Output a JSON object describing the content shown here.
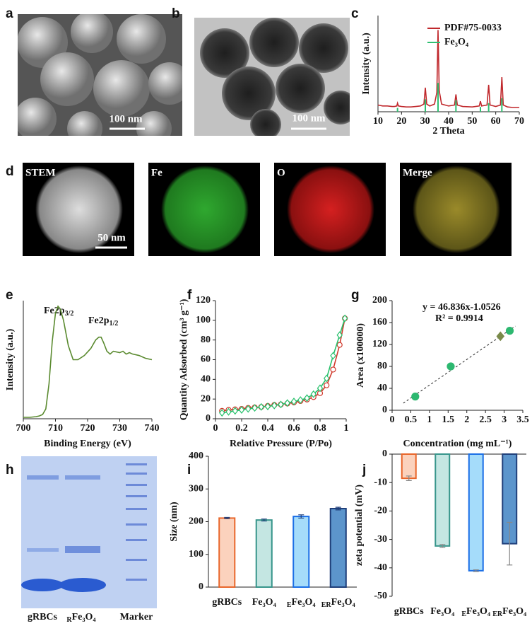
{
  "panel_labels": [
    "a",
    "b",
    "c",
    "d",
    "e",
    "f",
    "g",
    "h",
    "i",
    "j"
  ],
  "images": {
    "a_scale": "100 nm",
    "b_scale": "100 nm",
    "d_titles": [
      "STEM",
      "Fe",
      "O",
      "Merge"
    ],
    "d_scale": "50 nm",
    "h_lanes": [
      "gRBCs",
      {
        "sub": "R",
        "text": "Fe₃O₄"
      },
      "Marker"
    ]
  },
  "chart_data": [
    {
      "type": "line",
      "ylabel": "Intensity (a.u.)",
      "xlabel": "2 Theta",
      "xlim": [
        10,
        70
      ],
      "xticks": [
        10,
        20,
        30,
        40,
        50,
        60,
        70
      ],
      "ylim": [
        0,
        100
      ],
      "legend": "upper right",
      "series": [
        {
          "name": "PDF#75-0033",
          "color": "#c0282c",
          "x": [
            10,
            12,
            14,
            16,
            17,
            18,
            18.3,
            18.7,
            20,
            22,
            24,
            26,
            28,
            29.5,
            30.1,
            30.7,
            32,
            34,
            35,
            35.5,
            36,
            37,
            40,
            42.5,
            43.1,
            43.7,
            46,
            50,
            53,
            53.5,
            54,
            56.3,
            57,
            57.6,
            60,
            62,
            62.6,
            63.2,
            65,
            67,
            70
          ],
          "values": [
            7,
            6,
            6,
            5.5,
            5.5,
            6,
            9,
            6,
            5.5,
            5,
            5,
            5.5,
            6,
            8,
            25,
            8,
            6,
            8,
            20,
            85,
            22,
            8,
            6,
            7,
            18,
            7,
            5.5,
            5,
            6,
            11,
            6,
            7,
            28,
            7,
            5.5,
            7,
            36,
            7,
            5,
            4.5,
            4.5
          ]
        },
        {
          "name": "Fe₃O₄",
          "color": "#2fbf71",
          "marker": "stick",
          "x": [
            18.3,
            30.1,
            35.5,
            43.1,
            53.5,
            57.0,
            62.6
          ],
          "values": [
            4,
            13,
            30,
            12,
            5,
            9,
            14
          ]
        }
      ]
    },
    {
      "type": "line",
      "ylabel": "Intensity (a.u.)",
      "xlabel": "Binding Energy (eV)",
      "xlim": [
        700,
        740
      ],
      "xticks": [
        700,
        710,
        720,
        730,
        740
      ],
      "ylim": [
        0,
        84
      ],
      "annotations": [
        {
          "text": "Fe2p",
          "sub": "3/2"
        },
        {
          "text": "Fe2p",
          "sub": "1/2"
        }
      ],
      "series": [
        {
          "color": "#5a8a2f",
          "x": [
            700,
            702,
            704,
            705,
            706,
            707,
            708,
            709,
            710,
            710.8,
            711.5,
            712.5,
            714,
            715.5,
            717,
            719,
            721,
            722.5,
            723.5,
            724.2,
            725,
            726,
            727,
            728,
            730,
            731,
            732,
            733,
            734,
            736,
            738,
            740
          ],
          "values": [
            1,
            1,
            1.5,
            2,
            3,
            7,
            25,
            55,
            75,
            80,
            78,
            70,
            52,
            42,
            42,
            45,
            50,
            56,
            58,
            58,
            54,
            48,
            46,
            48,
            47,
            48,
            46,
            47,
            46,
            45,
            43,
            42
          ]
        }
      ]
    },
    {
      "type": "line",
      "ylabel": "Quantity Adsorbed (cm³ g⁻¹)",
      "xlabel": "Relative Pressure (P/Po)",
      "xlim": [
        0,
        1
      ],
      "xticks": [
        0,
        0.2,
        0.4,
        0.6,
        0.8,
        1
      ],
      "ylim": [
        0,
        120
      ],
      "yticks": [
        0,
        20,
        40,
        60,
        80,
        100,
        120
      ],
      "x": [
        0.05,
        0.1,
        0.15,
        0.2,
        0.25,
        0.3,
        0.35,
        0.4,
        0.45,
        0.5,
        0.55,
        0.6,
        0.65,
        0.7,
        0.75,
        0.8,
        0.85,
        0.9,
        0.95,
        0.99
      ],
      "series": [
        {
          "color": "#d0392b",
          "marker": "circle",
          "hollow": true,
          "values": [
            8,
            9,
            9.5,
            10,
            11,
            11.5,
            12,
            13,
            14,
            14.5,
            15.5,
            16.5,
            18,
            19.5,
            22,
            26,
            34,
            50,
            75,
            102
          ]
        },
        {
          "color": "#27c06b",
          "marker": "diamond",
          "hollow": true,
          "values": [
            6,
            7,
            8,
            9,
            10,
            11,
            12,
            12.5,
            13.5,
            14.5,
            16,
            17.5,
            19,
            21,
            25,
            31,
            41,
            64,
            85,
            102
          ]
        }
      ]
    },
    {
      "type": "scatter",
      "ylabel": "Area (x100000)",
      "xlabel": "Concentration (mg mL⁻¹)",
      "xlim": [
        0,
        3.5
      ],
      "xticks": [
        0,
        0.5,
        1,
        1.5,
        2,
        2.5,
        3,
        3.5
      ],
      "ylim": [
        0,
        200
      ],
      "yticks": [
        0,
        40,
        80,
        120,
        160,
        200
      ],
      "annotations": [
        "y = 46.836x-1.0526",
        "R² = 0.9914"
      ],
      "series": [
        {
          "color": "#222222",
          "line_style": "dashed",
          "x": [
            0.3,
            3.3
          ],
          "values": [
            13,
            153.5
          ]
        },
        {
          "color": "#2db870",
          "marker": "circle",
          "x": [
            0.62,
            1.57,
            3.15
          ],
          "values": [
            25,
            80,
            145
          ]
        },
        {
          "color": "#7a8a4a",
          "marker": "diamond",
          "x": [
            2.9
          ],
          "values": [
            135
          ]
        }
      ]
    },
    {
      "type": "bar",
      "ylabel": "Size (nm)",
      "ylim": [
        0,
        400
      ],
      "yticks": [
        0,
        100,
        200,
        300,
        400
      ],
      "categories": [
        "gRBCs",
        "Fe₃O₄",
        {
          "sub": "E",
          "text": "Fe₃O₄"
        },
        {
          "sub": "ER",
          "text": "Fe₃O₄"
        }
      ],
      "values": [
        211,
        205,
        216,
        240
      ],
      "errors": [
        2,
        3,
        5,
        4
      ],
      "colors": [
        "#fbd2bd",
        "#c4e6e2",
        "#a5dcfa",
        "#5c95cc"
      ],
      "edgecolors": [
        "#e8662b",
        "#37958b",
        "#1b6fe6",
        "#1f3f7a"
      ]
    },
    {
      "type": "bar",
      "ylabel": "zeta potential (mV)",
      "ylim": [
        -50,
        0
      ],
      "yticks": [
        0,
        -10,
        -20,
        -30,
        -40,
        -50
      ],
      "categories": [
        "gRBCs",
        "Fe₃O₄",
        {
          "sub": "E",
          "text": "Fe₃O₄"
        },
        {
          "sub": "ER",
          "text": "Fe₃O₄"
        }
      ],
      "values": [
        -8.5,
        -32.3,
        -41,
        -31.5
      ],
      "errors": [
        0.8,
        0.5,
        0.3,
        7.5
      ],
      "colors": [
        "#fbd2bd",
        "#c4e6e2",
        "#a5dcfa",
        "#5c95cc"
      ],
      "edgecolors": [
        "#e8662b",
        "#37958b",
        "#1b6fe6",
        "#1f3f7a"
      ]
    }
  ]
}
